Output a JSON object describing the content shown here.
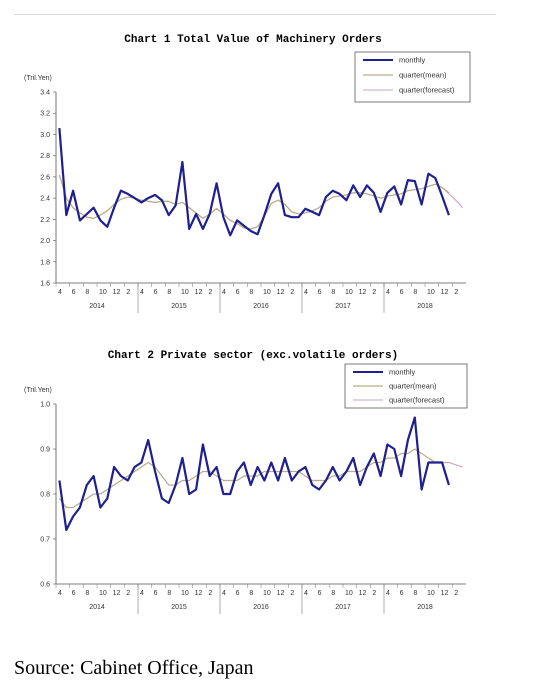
{
  "source": "Source: Cabinet Office, Japan",
  "chart_data": [
    {
      "type": "line",
      "title": "Chart 1 Total Value of Machinery Orders",
      "unit_label": "(Tril.Yen)",
      "ylim": [
        1.6,
        3.4
      ],
      "yticks": [
        "1.6",
        "1.8",
        "2.0",
        "2.2",
        "2.4",
        "2.6",
        "2.8",
        "3.0",
        "3.2",
        "3.4"
      ],
      "month_ticks": [
        "4",
        "6",
        "8",
        "10",
        "12",
        "2",
        "4",
        "6",
        "8",
        "10",
        "12",
        "2",
        "4",
        "6",
        "8",
        "10",
        "12",
        "2",
        "4",
        "6",
        "8",
        "10",
        "12",
        "2",
        "4",
        "6",
        "8",
        "10",
        "12",
        "2"
      ],
      "years": [
        "2014",
        "2015",
        "2016",
        "2017",
        "2018"
      ],
      "legend": [
        "monthly",
        "quarter(mean)",
        "quarter(forecast)"
      ],
      "grid": false,
      "legend_position": "top-right",
      "colors": {
        "monthly": "#1f1f8f",
        "mean": "#b8ad8a",
        "forecast": "#c7a6c7"
      },
      "series": [
        {
          "name": "monthly",
          "values": [
            3.06,
            2.24,
            2.47,
            2.19,
            2.25,
            2.31,
            2.19,
            2.13,
            2.31,
            2.47,
            2.44,
            2.4,
            2.36,
            2.4,
            2.43,
            2.38,
            2.24,
            2.33,
            2.74,
            2.11,
            2.25,
            2.11,
            2.25,
            2.54,
            2.22,
            2.05,
            2.19,
            2.14,
            2.09,
            2.06,
            2.24,
            2.44,
            2.54,
            2.24,
            2.22,
            2.22,
            2.3,
            2.27,
            2.24,
            2.41,
            2.47,
            2.44,
            2.38,
            2.52,
            2.41,
            2.52,
            2.45,
            2.27,
            2.45,
            2.51,
            2.34,
            2.57,
            2.56,
            2.34,
            2.63,
            2.59,
            2.42,
            2.24
          ]
        },
        {
          "name": "quarter(mean)",
          "values": [
            2.62,
            2.4,
            2.31,
            2.26,
            2.22,
            2.21,
            2.24,
            2.28,
            2.34,
            2.39,
            2.41,
            2.4,
            2.38,
            2.37,
            2.36,
            2.37,
            2.37,
            2.34,
            2.36,
            2.31,
            2.26,
            2.21,
            2.25,
            2.3,
            2.25,
            2.19,
            2.16,
            2.12,
            2.11,
            2.13,
            2.23,
            2.35,
            2.38,
            2.34,
            2.27,
            2.25,
            2.26,
            2.28,
            2.31,
            2.37,
            2.41,
            2.42,
            2.43,
            2.45,
            2.45,
            2.44,
            2.42,
            2.4,
            2.42,
            2.43,
            2.44,
            2.47,
            2.48,
            2.49,
            2.51,
            2.53,
            2.5,
            2.45
          ]
        },
        {
          "name": "quarter(forecast)",
          "values": [
            null,
            null,
            null,
            null,
            null,
            null,
            null,
            null,
            null,
            null,
            null,
            null,
            null,
            null,
            null,
            null,
            null,
            null,
            null,
            null,
            null,
            null,
            null,
            null,
            null,
            null,
            null,
            null,
            null,
            null,
            null,
            null,
            null,
            null,
            null,
            null,
            null,
            null,
            null,
            null,
            null,
            null,
            null,
            null,
            null,
            null,
            null,
            null,
            null,
            null,
            null,
            null,
            null,
            null,
            null,
            null,
            2.5,
            2.44,
            2.38,
            2.31
          ]
        }
      ]
    },
    {
      "type": "line",
      "title": "Chart 2 Private sector (exc.volatile orders)",
      "unit_label": "(Tril.Yen)",
      "ylim": [
        0.6,
        1.0
      ],
      "yticks": [
        "0.6",
        "0.7",
        "0.8",
        "0.9",
        "1.0"
      ],
      "month_ticks": [
        "4",
        "6",
        "8",
        "10",
        "12",
        "2",
        "4",
        "6",
        "8",
        "10",
        "12",
        "2",
        "4",
        "6",
        "8",
        "10",
        "12",
        "2",
        "4",
        "6",
        "8",
        "10",
        "12",
        "2",
        "4",
        "6",
        "8",
        "10",
        "12",
        "2"
      ],
      "years": [
        "2014",
        "2015",
        "2016",
        "2017",
        "2018"
      ],
      "legend": [
        "monthly",
        "quarter(mean)",
        "quarter(forecast)"
      ],
      "grid": false,
      "legend_position": "top-right",
      "colors": {
        "monthly": "#1f1f8f",
        "mean": "#b8ad8a",
        "forecast": "#c7a6c7"
      },
      "series": [
        {
          "name": "monthly",
          "values": [
            0.83,
            0.72,
            0.75,
            0.77,
            0.82,
            0.84,
            0.77,
            0.79,
            0.86,
            0.84,
            0.83,
            0.86,
            0.87,
            0.92,
            0.85,
            0.79,
            0.78,
            0.82,
            0.88,
            0.8,
            0.81,
            0.91,
            0.84,
            0.86,
            0.8,
            0.8,
            0.85,
            0.87,
            0.82,
            0.86,
            0.83,
            0.87,
            0.83,
            0.88,
            0.83,
            0.85,
            0.86,
            0.82,
            0.81,
            0.83,
            0.86,
            0.83,
            0.85,
            0.88,
            0.82,
            0.86,
            0.89,
            0.84,
            0.91,
            0.9,
            0.84,
            0.92,
            0.97,
            0.81,
            0.87,
            0.87,
            0.87,
            0.82
          ]
        },
        {
          "name": "quarter(mean)",
          "values": [
            0.79,
            0.77,
            0.77,
            0.78,
            0.79,
            0.8,
            0.8,
            0.81,
            0.82,
            0.83,
            0.84,
            0.85,
            0.86,
            0.87,
            0.86,
            0.84,
            0.82,
            0.82,
            0.83,
            0.83,
            0.84,
            0.85,
            0.85,
            0.84,
            0.83,
            0.83,
            0.83,
            0.84,
            0.84,
            0.84,
            0.85,
            0.85,
            0.85,
            0.85,
            0.85,
            0.85,
            0.84,
            0.83,
            0.83,
            0.83,
            0.84,
            0.84,
            0.85,
            0.85,
            0.85,
            0.86,
            0.87,
            0.87,
            0.88,
            0.88,
            0.89,
            0.89,
            0.9,
            0.89,
            0.88,
            0.87,
            0.87,
            0.87
          ]
        },
        {
          "name": "quarter(forecast)",
          "values": [
            null,
            null,
            null,
            null,
            null,
            null,
            null,
            null,
            null,
            null,
            null,
            null,
            null,
            null,
            null,
            null,
            null,
            null,
            null,
            null,
            null,
            null,
            null,
            null,
            null,
            null,
            null,
            null,
            null,
            null,
            null,
            null,
            null,
            null,
            null,
            null,
            null,
            null,
            null,
            null,
            null,
            null,
            null,
            null,
            null,
            null,
            null,
            null,
            null,
            null,
            null,
            null,
            null,
            null,
            null,
            null,
            0.87,
            0.87,
            0.865,
            0.86
          ]
        }
      ]
    }
  ]
}
